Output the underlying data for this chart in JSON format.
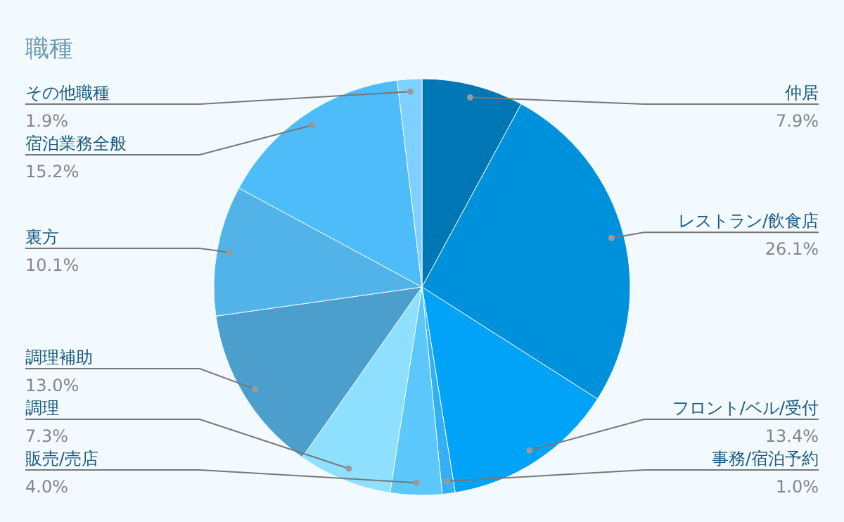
{
  "chart_data": {
    "type": "pie",
    "title": "職種",
    "categories": [
      "仲居",
      "レストラン/飲食店",
      "フロント/ベル/受付",
      "事務/宿泊予約",
      "販売/売店",
      "調理",
      "調理補助",
      "裏方",
      "宿泊業務全般",
      "その他職種"
    ],
    "values": [
      7.9,
      26.1,
      13.4,
      1.0,
      4.0,
      7.3,
      13.0,
      10.1,
      15.2,
      1.9
    ],
    "value_labels": [
      "7.9%",
      "26.1%",
      "13.4%",
      "1.0%",
      "4.0%",
      "7.3%",
      "13.0%",
      "10.1%",
      "15.2%",
      "1.9%"
    ],
    "colors": [
      "#0077b5",
      "#0091dd",
      "#00a3f7",
      "#33b0f5",
      "#5cc7fb",
      "#8fdfff",
      "#4c9fcc",
      "#52b3e8",
      "#4dbcf9",
      "#7dd0ff"
    ]
  }
}
